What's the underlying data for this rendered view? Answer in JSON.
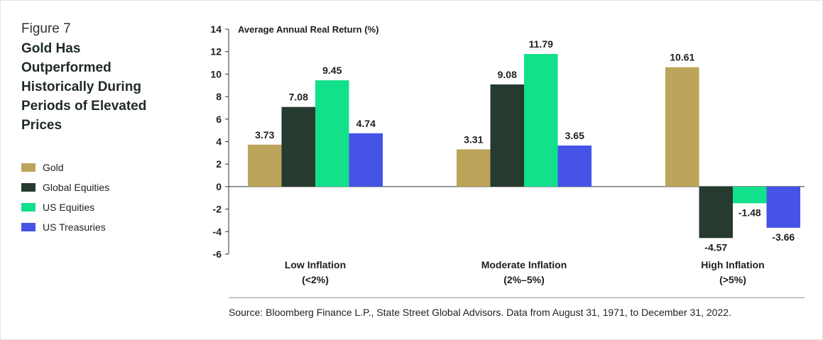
{
  "figure_label": "Figure 7",
  "figure_title": "Gold Has Outperformed Historically During Periods of Elevated Prices",
  "source": "Source: Bloomberg Finance L.P., State Street Global Advisors. Data from August 31, 1971, to December 31, 2022.",
  "chart_data": {
    "type": "bar",
    "title": "",
    "ylabel": "Average Annual Real Return (%)",
    "xlabel": "",
    "ylim": [
      -6,
      14
    ],
    "yticks": [
      14,
      12,
      10,
      8,
      6,
      4,
      2,
      0,
      -2,
      -4,
      -6
    ],
    "grid": false,
    "legend_position": "left",
    "categories": [
      {
        "line1": "Low Inflation",
        "line2": "(<2%)"
      },
      {
        "line1": "Moderate Inflation",
        "line2": "(2%–5%)"
      },
      {
        "line1": "High Inflation",
        "line2": "(>5%)"
      }
    ],
    "series": [
      {
        "name": "Gold",
        "color": "#bca45a",
        "values": [
          3.73,
          3.31,
          10.61
        ]
      },
      {
        "name": "Global Equities",
        "color": "#263a2f",
        "values": [
          7.08,
          9.08,
          -4.57
        ]
      },
      {
        "name": "US Equities",
        "color": "#12e08a",
        "values": [
          9.45,
          11.79,
          -1.48
        ]
      },
      {
        "name": "US Treasuries",
        "color": "#4553e6",
        "values": [
          4.74,
          3.65,
          -3.66
        ]
      }
    ]
  }
}
